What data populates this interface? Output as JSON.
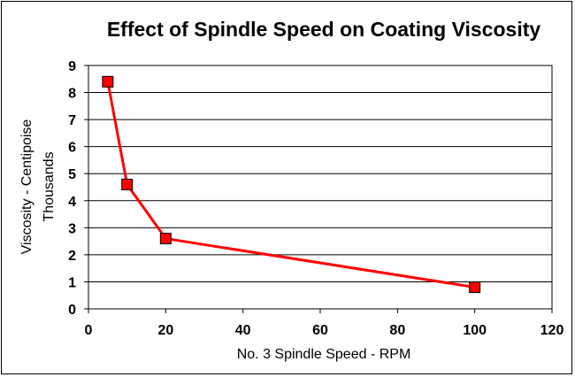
{
  "chart_data": {
    "type": "line",
    "title": "Effect of Spindle Speed on Coating Viscosity",
    "xlabel": "No. 3 Spindle Speed - RPM",
    "ylabel": [
      "Viscosity - Centipoise",
      "Thousands"
    ],
    "xlim": [
      0,
      120
    ],
    "ylim": [
      0,
      9
    ],
    "xticks": [
      "0",
      "20",
      "40",
      "60",
      "80",
      "100",
      "120"
    ],
    "yticks": [
      "0",
      "1",
      "2",
      "3",
      "4",
      "5",
      "6",
      "7",
      "8",
      "9"
    ],
    "grid": "horizontal",
    "series": [
      {
        "x": [
          5,
          10,
          20,
          100
        ],
        "y": [
          8.4,
          4.6,
          2.6,
          0.8
        ],
        "color": "#ff0000",
        "marker": "square"
      }
    ]
  }
}
